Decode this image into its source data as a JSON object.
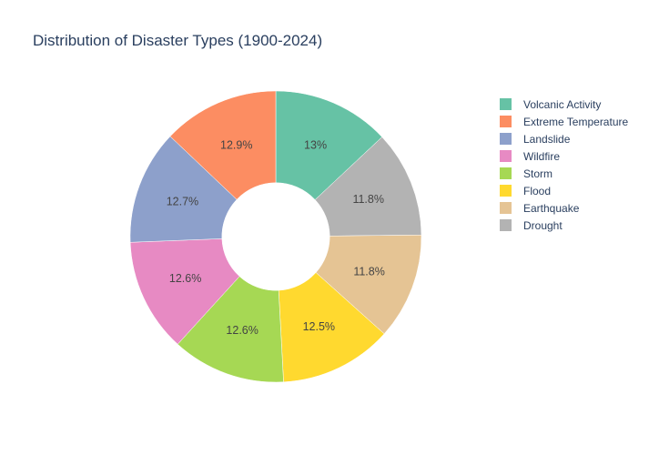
{
  "chart_data": {
    "type": "pie",
    "title": "Distribution of Disaster Types (1900-2024)",
    "hole": 0.37,
    "direction": "clockwise",
    "start": "top",
    "legend_position": "right",
    "slices": [
      {
        "label": "Volcanic Activity",
        "value": 13.0,
        "text": "13%",
        "color": "#66c2a5"
      },
      {
        "label": "Drought",
        "value": 11.8,
        "text": "11.8%",
        "color": "#b3b3b3"
      },
      {
        "label": "Earthquake",
        "value": 11.8,
        "text": "11.8%",
        "color": "#e5c494"
      },
      {
        "label": "Flood",
        "value": 12.5,
        "text": "12.5%",
        "color": "#ffd92f"
      },
      {
        "label": "Storm",
        "value": 12.6,
        "text": "12.6%",
        "color": "#a6d854"
      },
      {
        "label": "Wildfire",
        "value": 12.6,
        "text": "12.6%",
        "color": "#e78ac3"
      },
      {
        "label": "Landslide",
        "value": 12.7,
        "text": "12.7%",
        "color": "#8da0cb"
      },
      {
        "label": "Extreme Temperature",
        "value": 12.9,
        "text": "12.9%",
        "color": "#fc8d62"
      }
    ],
    "legend": [
      {
        "label": "Volcanic Activity",
        "color": "#66c2a5"
      },
      {
        "label": "Extreme Temperature",
        "color": "#fc8d62"
      },
      {
        "label": "Landslide",
        "color": "#8da0cb"
      },
      {
        "label": "Wildfire",
        "color": "#e78ac3"
      },
      {
        "label": "Storm",
        "color": "#a6d854"
      },
      {
        "label": "Flood",
        "color": "#ffd92f"
      },
      {
        "label": "Earthquake",
        "color": "#e5c494"
      },
      {
        "label": "Drought",
        "color": "#b3b3b3"
      }
    ]
  }
}
